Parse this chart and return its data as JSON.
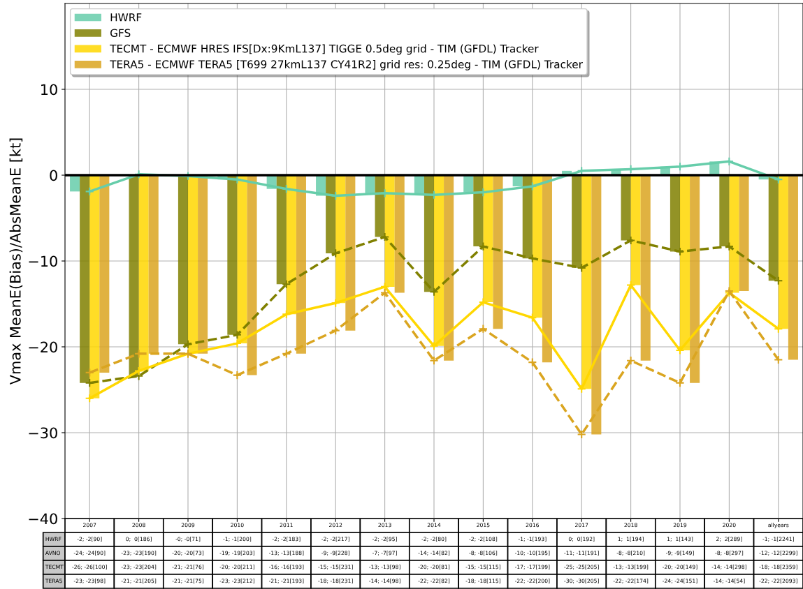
{
  "chart_data": {
    "type": "bar",
    "ylabel": "Vmax MeanE(Bias)/AbsMeanE [kt]",
    "categories": [
      "2007",
      "2008",
      "2009",
      "2010",
      "2011",
      "2012",
      "2013",
      "2014",
      "2015",
      "2016",
      "2017",
      "2018",
      "2019",
      "2020",
      "allyears"
    ],
    "series": [
      {
        "name": "HWRF",
        "color": "#66cdaa",
        "values": [
          -1.9,
          0.1,
          -0.1,
          -0.5,
          -1.6,
          -2.4,
          -2.1,
          -2.3,
          -2.0,
          -1.3,
          0.5,
          0.7,
          1.0,
          1.6,
          -0.5
        ],
        "value_labels": [
          "-2; -2[90]",
          "0;  0[186]",
          "-0; -0[71]",
          "-1; -1[200]",
          "-2; -2[183]",
          "-2; -2[217]",
          "-2; -2[95]",
          "-2; -2[80]",
          "-2; -2[108]",
          "-1; -1[193]",
          "0;  0[192]",
          "1;  1[194]",
          "1;  1[143]",
          "2;  2[289]",
          "-1; -1[2241]"
        ]
      },
      {
        "name": "GFS",
        "color": "#808000",
        "values": [
          -24.2,
          -23.4,
          -19.7,
          -18.6,
          -12.7,
          -9.1,
          -7.2,
          -13.6,
          -8.3,
          -9.7,
          -10.8,
          -7.6,
          -8.9,
          -8.3,
          -12.3
        ],
        "value_labels": [
          "-24; -24[90]",
          "-23; -23[190]",
          "-20; -20[73]",
          "-19; -19[203]",
          "-13; -13[188]",
          "-9; -9[228]",
          "-7; -7[97]",
          "-14; -14[82]",
          "-8; -8[106]",
          "-10; -10[195]",
          "-11; -11[191]",
          "-8; -8[210]",
          "-9; -9[149]",
          "-8; -8[297]",
          "-12; -12[2299]"
        ]
      },
      {
        "name": "TECMT - ECMWF HRES IFS[Dx:9KmL137] TIGGE 0.5deg grid - TIM (GFDL) Tracker",
        "color": "#ffd700",
        "values": [
          -26.0,
          -22.8,
          -20.8,
          -19.6,
          -16.2,
          -14.9,
          -13.0,
          -19.9,
          -14.8,
          -16.6,
          -24.9,
          -12.8,
          -20.4,
          -13.7,
          -17.9
        ],
        "value_labels": [
          "-26; -26[100]",
          "-23; -23[204]",
          "-21; -21[76]",
          "-20; -20[211]",
          "-16; -16[193]",
          "-15; -15[231]",
          "-13; -13[98]",
          "-20; -20[81]",
          "-15; -15[115]",
          "-17; -17[199]",
          "-25; -25[205]",
          "-13; -13[199]",
          "-20; -20[149]",
          "-14; -14[298]",
          "-18; -18[2359]"
        ]
      },
      {
        "name": "TERA5 - ECMWF TERA5 [T699 27kmL137 CY41R2] grid res: 0.25deg - TIM (GFDL) Tracker",
        "color": "#daa520",
        "values": [
          -23.0,
          -20.8,
          -20.8,
          -23.3,
          -20.8,
          -18.1,
          -13.7,
          -21.6,
          -17.9,
          -21.8,
          -30.2,
          -21.6,
          -24.2,
          -13.5,
          -21.5
        ],
        "value_labels": [
          "-23; -23[98]",
          "-21; -21[205]",
          "-21; -21[75]",
          "-23; -23[212]",
          "-21; -21[193]",
          "-18; -18[231]",
          "-14; -14[98]",
          "-22; -22[82]",
          "-18; -18[115]",
          "-22; -22[200]",
          "-30; -30[205]",
          "-22; -22[174]",
          "-24; -24[151]",
          "-14; -14[54]",
          "-22; -22[2093]"
        ]
      },
      {
        "type": "line",
        "color": "#66cdaa",
        "line_style": "solid",
        "marker": "cross",
        "values": [
          -1.9,
          0.1,
          -0.1,
          -0.5,
          -1.6,
          -2.4,
          -2.1,
          -2.3,
          -2.0,
          -1.3,
          0.5,
          0.7,
          1.0,
          1.6,
          -0.5
        ]
      },
      {
        "type": "line",
        "color": "#808000",
        "line_style": "dashed",
        "marker": "cross",
        "values": [
          -24.2,
          -23.4,
          -19.7,
          -18.6,
          -12.7,
          -9.1,
          -7.2,
          -13.6,
          -8.3,
          -9.7,
          -10.8,
          -7.6,
          -8.9,
          -8.3,
          -12.3
        ]
      },
      {
        "type": "line",
        "color": "#ffd700",
        "line_style": "solid",
        "marker": "cross",
        "values": [
          -26.0,
          -22.8,
          -20.8,
          -19.6,
          -16.2,
          -14.9,
          -13.0,
          -19.9,
          -14.8,
          -16.6,
          -24.9,
          -12.8,
          -20.4,
          -13.7,
          -17.9
        ]
      },
      {
        "type": "line",
        "color": "#daa520",
        "line_style": "dashed",
        "marker": "cross",
        "values": [
          -23.0,
          -20.8,
          -20.8,
          -23.3,
          -20.8,
          -18.1,
          -13.7,
          -21.6,
          -17.9,
          -21.8,
          -30.2,
          -21.6,
          -24.2,
          -13.5,
          -21.5
        ]
      }
    ],
    "annotations": [
      "HWRF",
      "AVNO",
      "TECMT",
      "TERA5"
    ],
    "ylim": [
      -40,
      20
    ],
    "yticks": [
      -40,
      -30,
      -20,
      -10,
      0,
      10
    ],
    "ref_lines": [
      {
        "axis": "y",
        "value": 0,
        "color": "#000000"
      }
    ],
    "grid": true,
    "legend": "top left"
  }
}
